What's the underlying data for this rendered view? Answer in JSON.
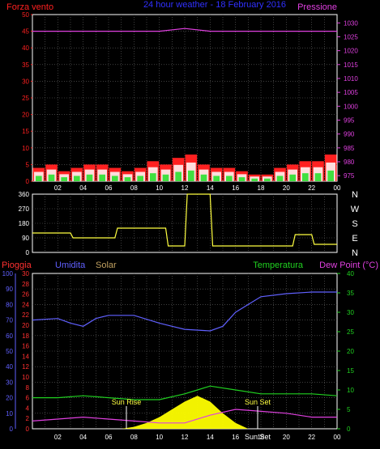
{
  "header": {
    "left_label": "Forza vento",
    "center_label": "24 hour weather - 18 February 2016",
    "right_label": "Pressione"
  },
  "direction_panel": {
    "right_labels": [
      "N",
      "W",
      "S",
      "E",
      "N"
    ]
  },
  "lower_panel": {
    "labels": {
      "rain": "Pioggia",
      "humidity": "Umidita",
      "solar": "Solar",
      "temperature": "Temperatura",
      "dewpoint": "Dew Point (°C)"
    },
    "annotations": {
      "sunrise": "Sun Rise",
      "sunset": "Sun Set",
      "sunset_bottom": "Sun Set"
    }
  },
  "colors": {
    "wind": "#ff2020",
    "gust": "#ffffff",
    "avgwind": "#40e040",
    "pressure": "#e040e0",
    "direction": "#ffff40",
    "humidity": "#6060ff",
    "temperature": "#20d020",
    "dewpoint": "#e040e0",
    "solar": "#ffff00",
    "rain_axis": "#ff3030",
    "title": "#3030ff"
  },
  "chart_data": [
    {
      "type": "bar",
      "name": "wind",
      "x_ticks": [
        "02",
        "04",
        "06",
        "08",
        "10",
        "12",
        "14",
        "16",
        "18",
        "20",
        "22",
        "00"
      ],
      "y_left_ticks": [
        0,
        5,
        10,
        15,
        20,
        25,
        30,
        35,
        40,
        45,
        50
      ],
      "y_left_range": [
        0,
        50
      ],
      "y_right_ticks": [
        975,
        980,
        985,
        990,
        995,
        1000,
        1005,
        1010,
        1015,
        1020,
        1025,
        1030
      ],
      "y_right_range": [
        973,
        1033
      ],
      "wind_speed_hourly": [
        4,
        5,
        3,
        4,
        5,
        5,
        4,
        3,
        4,
        6,
        5,
        7,
        8,
        5,
        4,
        4,
        3,
        2,
        2,
        4,
        5,
        6,
        6,
        8
      ],
      "pressure": {
        "hours": [
          0,
          4,
          8,
          10,
          12,
          14,
          16,
          18,
          20,
          22,
          24
        ],
        "values": [
          1027,
          1027,
          1027,
          1027,
          1028,
          1027,
          1027,
          1027,
          1027,
          1027,
          1027
        ]
      }
    },
    {
      "type": "line",
      "name": "wind-direction",
      "y_ticks": [
        0,
        90,
        180,
        270,
        360
      ],
      "y_range": [
        0,
        360
      ],
      "hours": [
        0,
        3,
        3.2,
        6.5,
        6.7,
        10.5,
        10.7,
        12,
        12.2,
        14,
        14.2,
        20.5,
        20.7,
        22,
        22.2,
        24
      ],
      "values": [
        120,
        120,
        90,
        90,
        150,
        150,
        40,
        40,
        360,
        360,
        40,
        40,
        110,
        110,
        50,
        50
      ]
    },
    {
      "type": "line",
      "name": "climate",
      "y_left_ticks": [
        0,
        10,
        20,
        30,
        40,
        50,
        60,
        70,
        80,
        90,
        100
      ],
      "y_left_range": [
        0,
        100
      ],
      "y_rain_ticks": [
        0,
        2,
        4,
        6,
        8,
        10,
        12,
        14,
        16,
        18,
        20,
        22,
        24,
        26,
        28,
        30
      ],
      "y_rain_range": [
        0,
        30
      ],
      "y_right_ticks": [
        0,
        5,
        10,
        15,
        20,
        25,
        30,
        35,
        40
      ],
      "y_right_range": [
        0,
        40
      ],
      "humidity": {
        "hours": [
          0,
          2,
          3,
          4,
          5,
          6,
          8,
          10,
          11,
          12,
          14,
          15,
          16,
          17,
          18,
          20,
          22,
          24
        ],
        "values": [
          70,
          71,
          68,
          66,
          71,
          73,
          73,
          68,
          66,
          64,
          63,
          66,
          75,
          80,
          85,
          87,
          88,
          88
        ]
      },
      "temperature": {
        "hours": [
          0,
          2,
          4,
          6,
          8,
          10,
          12,
          13,
          14,
          16,
          18,
          20,
          22,
          24
        ],
        "values": [
          8,
          8,
          8.5,
          8,
          7.5,
          7.5,
          9,
          10,
          11,
          10,
          9,
          9,
          9,
          8.5
        ]
      },
      "dewpoint": {
        "hours": [
          0,
          2,
          4,
          6,
          8,
          10,
          12,
          14,
          16,
          18,
          20,
          22,
          24
        ],
        "values": [
          2,
          2.5,
          3,
          2.5,
          2,
          1.5,
          1.5,
          3.5,
          5,
          4.5,
          4,
          3,
          3
        ]
      },
      "solar": {
        "hours": [
          7,
          8,
          9,
          10,
          11,
          12,
          13,
          14,
          15,
          16,
          17
        ],
        "values": [
          0,
          0.5,
          1.5,
          3,
          5,
          7,
          8.5,
          7,
          4,
          1.5,
          0
        ]
      }
    }
  ]
}
